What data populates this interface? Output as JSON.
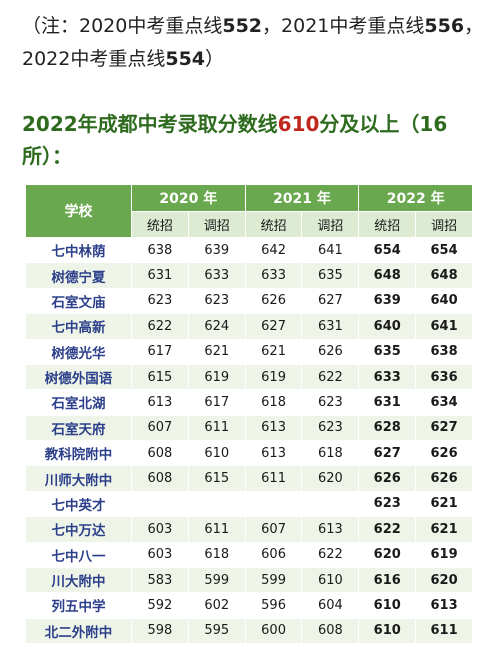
{
  "note": {
    "open": "（注：2020中考重点线",
    "v2020": "552",
    "mid": "，2021中考重点线",
    "v2021": "556",
    "mid2": "，2022中考重点线",
    "v2022": "554",
    "close": "）"
  },
  "heading": {
    "pre": "2022年成都中考录取分数线",
    "score": "610",
    "post": "分及以上（16所）："
  },
  "table": {
    "school_header": "学校",
    "years": [
      "2020 年",
      "2021 年",
      "2022 年"
    ],
    "sub": [
      "统招",
      "调招"
    ],
    "rows": [
      {
        "school": "七中林荫",
        "v": [
          "638",
          "639",
          "642",
          "641",
          "654",
          "654"
        ]
      },
      {
        "school": "树德宁夏",
        "v": [
          "631",
          "633",
          "633",
          "635",
          "648",
          "648"
        ]
      },
      {
        "school": "石室文庙",
        "v": [
          "623",
          "623",
          "626",
          "627",
          "639",
          "640"
        ]
      },
      {
        "school": "七中高新",
        "v": [
          "622",
          "624",
          "627",
          "631",
          "640",
          "641"
        ]
      },
      {
        "school": "树德光华",
        "v": [
          "617",
          "621",
          "621",
          "626",
          "635",
          "638"
        ]
      },
      {
        "school": "树德外国语",
        "v": [
          "615",
          "619",
          "619",
          "622",
          "633",
          "636"
        ]
      },
      {
        "school": "石室北湖",
        "v": [
          "613",
          "617",
          "618",
          "623",
          "631",
          "634"
        ]
      },
      {
        "school": "石室天府",
        "v": [
          "607",
          "611",
          "613",
          "623",
          "628",
          "627"
        ]
      },
      {
        "school": "教科院附中",
        "v": [
          "608",
          "610",
          "613",
          "618",
          "627",
          "626"
        ]
      },
      {
        "school": "川师大附中",
        "v": [
          "608",
          "615",
          "611",
          "620",
          "626",
          "626"
        ]
      },
      {
        "school": "七中英才",
        "v": [
          "",
          "",
          "",
          "",
          "623",
          "621"
        ]
      },
      {
        "school": "七中万达",
        "v": [
          "603",
          "611",
          "607",
          "613",
          "622",
          "621"
        ]
      },
      {
        "school": "七中八一",
        "v": [
          "603",
          "618",
          "606",
          "622",
          "620",
          "619"
        ]
      },
      {
        "school": "川大附中",
        "v": [
          "583",
          "599",
          "599",
          "610",
          "616",
          "620"
        ]
      },
      {
        "school": "列五中学",
        "v": [
          "592",
          "602",
          "596",
          "604",
          "610",
          "613"
        ]
      },
      {
        "school": "北二外附中",
        "v": [
          "598",
          "595",
          "600",
          "608",
          "610",
          "611"
        ]
      }
    ]
  },
  "colors": {
    "header_green": "#6aa84f",
    "subheader_green": "#ddebd2",
    "heading_green": "#2e6b1f",
    "highlight_red": "#c0281e",
    "school_blue": "#2c3f8a"
  }
}
